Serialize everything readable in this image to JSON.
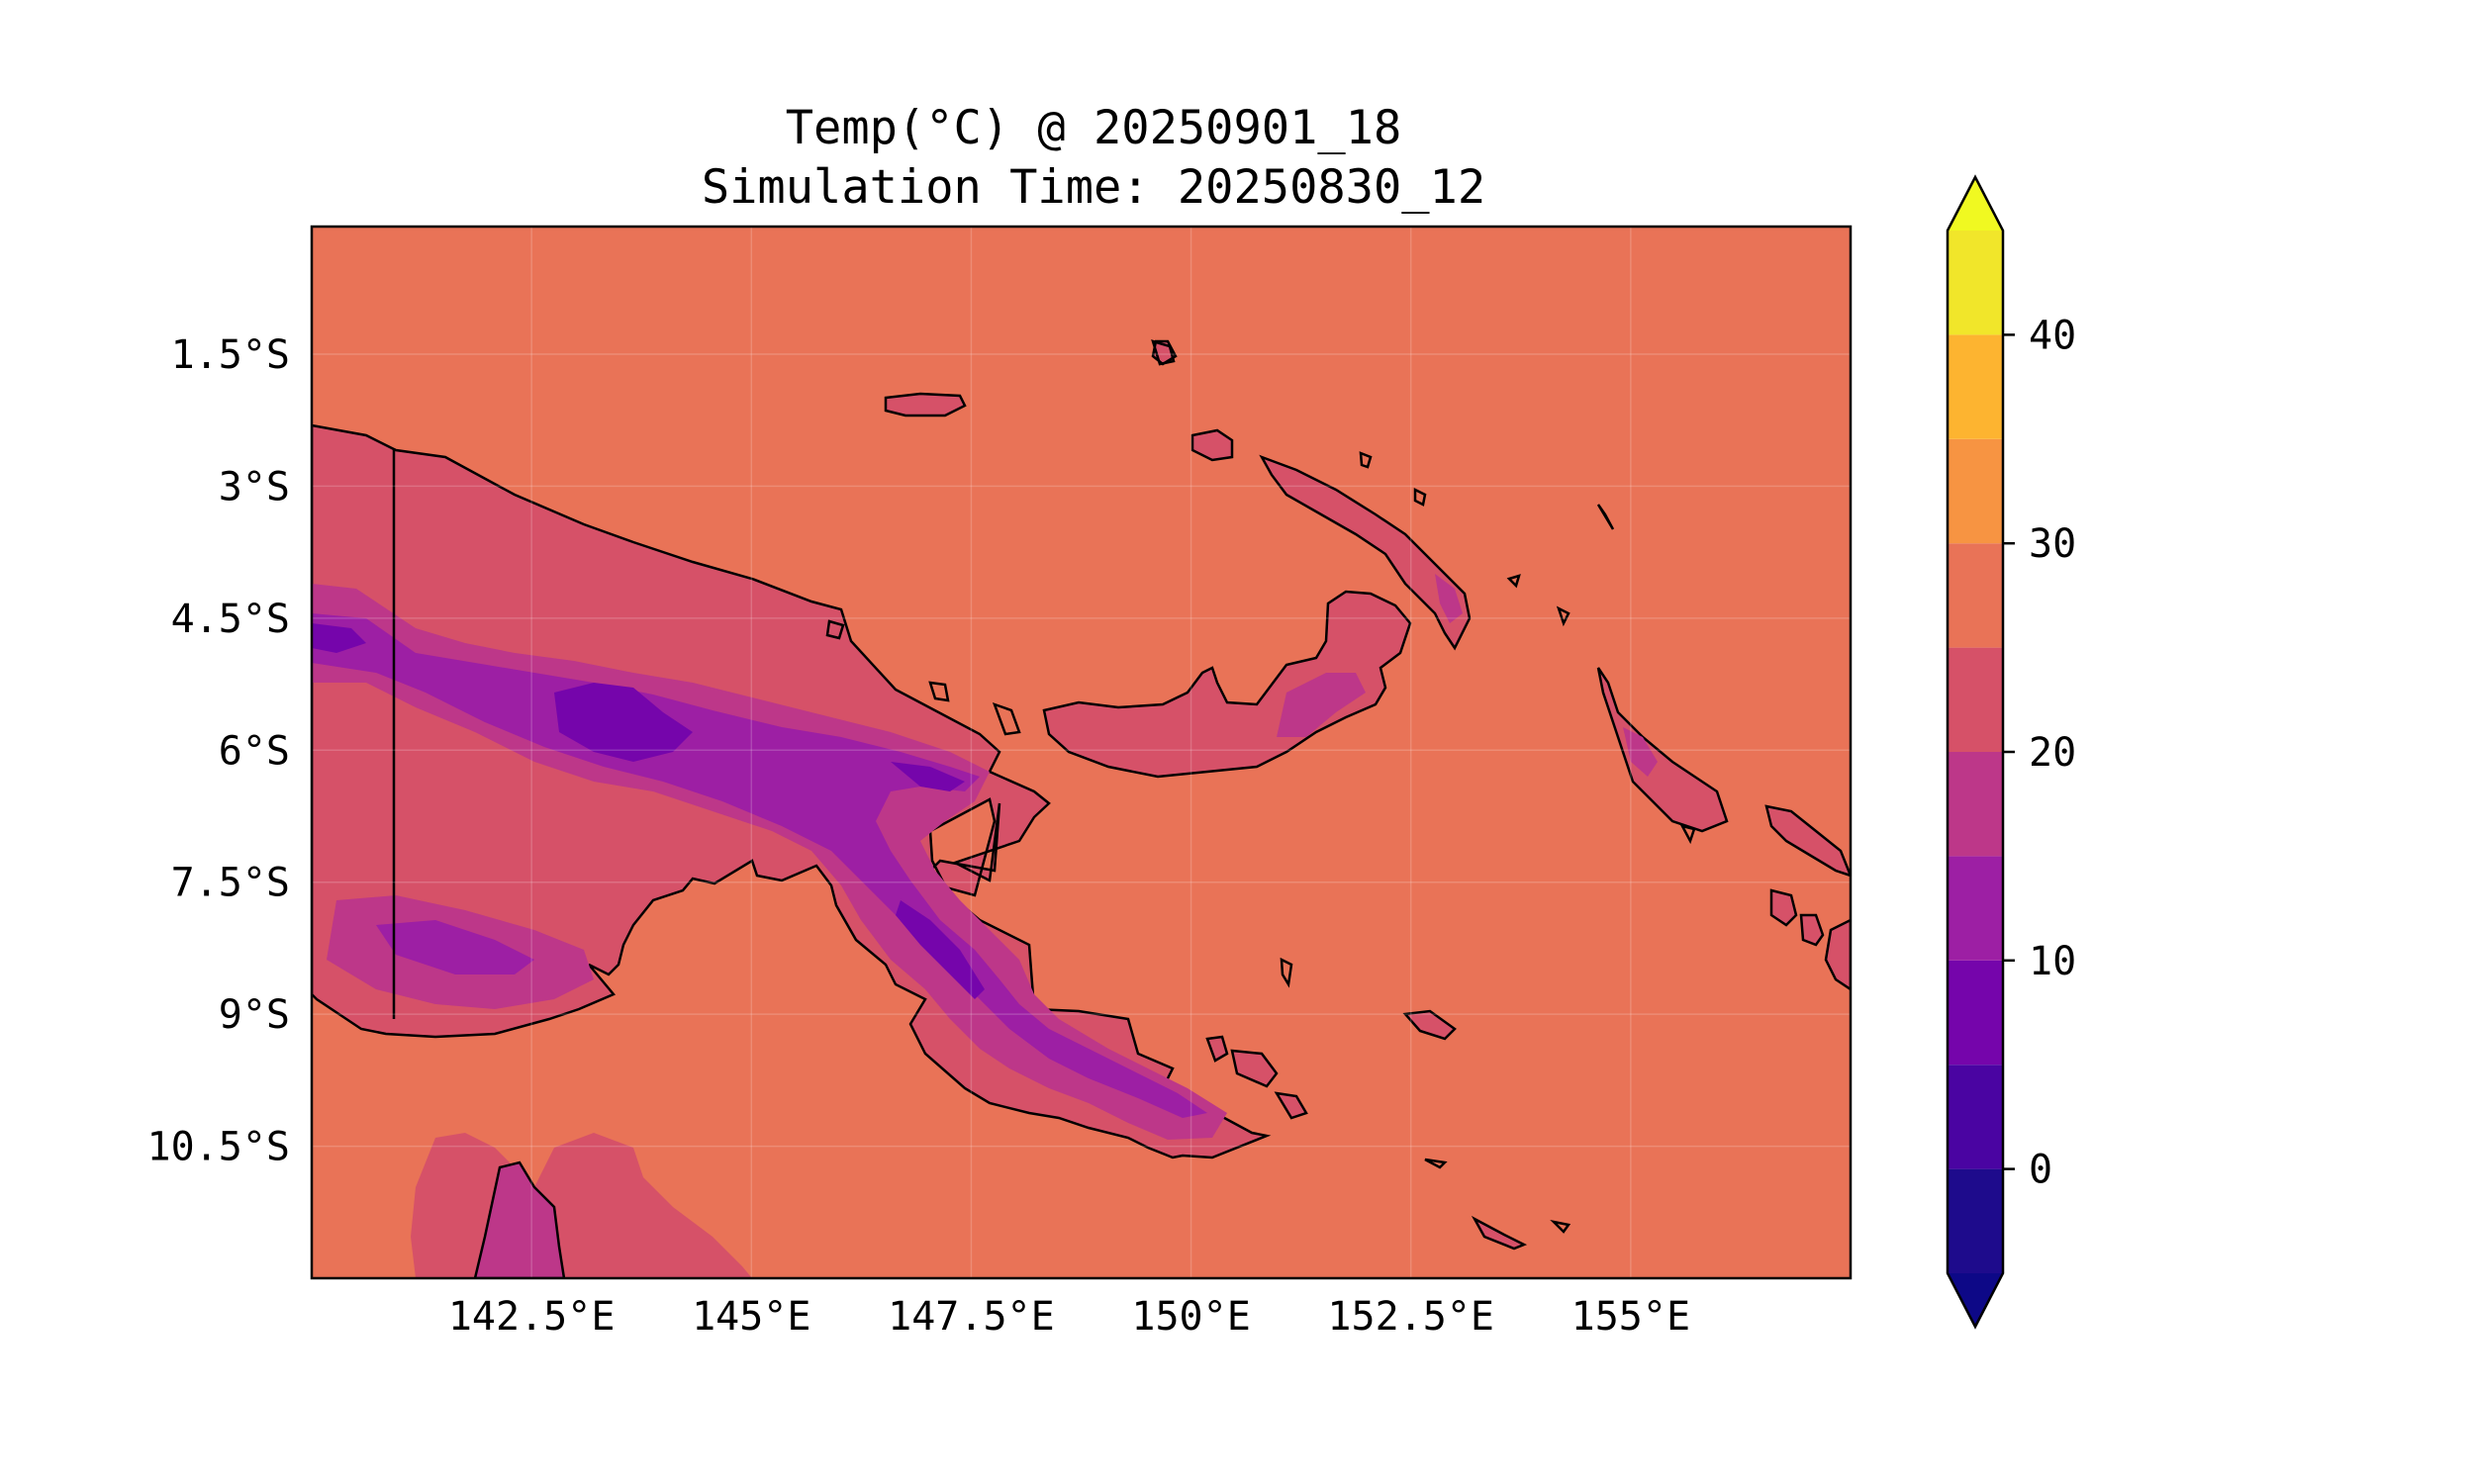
{
  "title": {
    "line1": "Temp(°C) @ 20250901_18",
    "line2": "Simulation Time: 20250830_12"
  },
  "map": {
    "extent": {
      "lon_min": 140.0,
      "lon_max": 157.5,
      "lat_min": -12.0,
      "lat_max": -0.05
    },
    "ocean_color": "#E97357",
    "grid": true,
    "lat_ticks": [
      {
        "lat": -1.5,
        "label": "1.5°S"
      },
      {
        "lat": -3.0,
        "label": "3°S"
      },
      {
        "lat": -4.5,
        "label": "4.5°S"
      },
      {
        "lat": -6.0,
        "label": "6°S"
      },
      {
        "lat": -7.5,
        "label": "7.5°S"
      },
      {
        "lat": -9.0,
        "label": "9°S"
      },
      {
        "lat": -10.5,
        "label": "10.5°S"
      }
    ],
    "lon_ticks": [
      {
        "lon": 142.5,
        "label": "142.5°E"
      },
      {
        "lon": 145.0,
        "label": "145°E"
      },
      {
        "lon": 147.5,
        "label": "147.5°E"
      },
      {
        "lon": 150.0,
        "label": "150°E"
      },
      {
        "lon": 152.5,
        "label": "152.5°E"
      },
      {
        "lon": 155.0,
        "label": "155°E"
      }
    ]
  },
  "colorbar": {
    "cmap": "plasma",
    "range": [
      -5,
      45
    ],
    "extend": "both",
    "levels": [
      {
        "from": -5,
        "to": 0,
        "color": "#1E0B8C"
      },
      {
        "from": 0,
        "to": 5,
        "color": "#4A04A2"
      },
      {
        "from": 5,
        "to": 10,
        "color": "#7505AB"
      },
      {
        "from": 10,
        "to": 15,
        "color": "#9D1FA4"
      },
      {
        "from": 15,
        "to": 20,
        "color": "#BD3789"
      },
      {
        "from": 20,
        "to": 25,
        "color": "#D65168"
      },
      {
        "from": 25,
        "to": 30,
        "color": "#E97357"
      },
      {
        "from": 30,
        "to": 35,
        "color": "#F79442"
      },
      {
        "from": 35,
        "to": 40,
        "color": "#FDB430"
      },
      {
        "from": 40,
        "to": 45,
        "color": "#F1E62A"
      }
    ],
    "under_color": "#0D0887",
    "over_color": "#F0F921",
    "ticks": [
      {
        "value": 0,
        "label": "0"
      },
      {
        "value": 10,
        "label": "10"
      },
      {
        "value": 20,
        "label": "20"
      },
      {
        "value": 30,
        "label": "30"
      },
      {
        "value": 40,
        "label": "40"
      }
    ]
  }
}
